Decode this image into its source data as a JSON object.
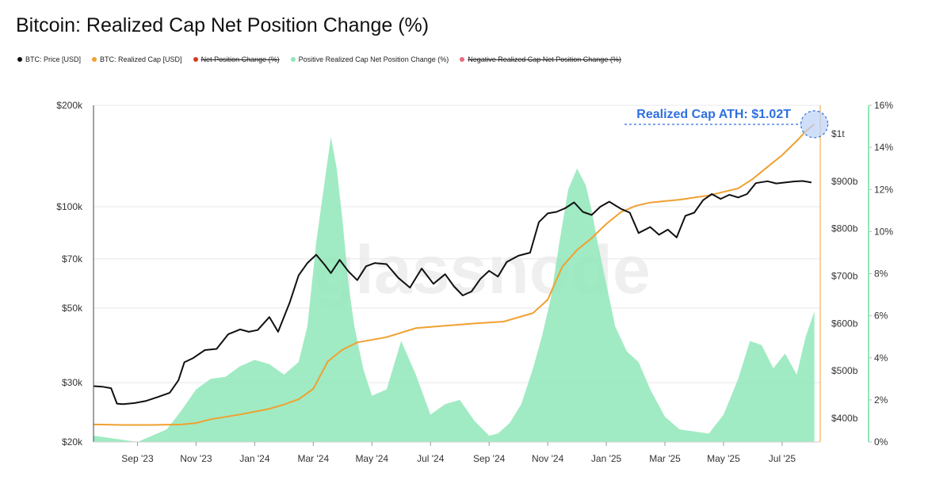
{
  "page_title": "Bitcoin: Realized Cap Net Position Change (%)",
  "legend": [
    {
      "label": "BTC: Price [USD]",
      "color": "#111111",
      "struck": false
    },
    {
      "label": "BTC: Realized Cap [USD]",
      "color": "#f0a030",
      "struck": false
    },
    {
      "label": "Net Position Change (%)",
      "color": "#d63a1e",
      "struck": true
    },
    {
      "label": "Positive Realized Cap Net Position Change (%)",
      "color": "#8fe8b8",
      "struck": false
    },
    {
      "label": "Negative Realized Cap Net Position Change (%)",
      "color": "#e86a7a",
      "struck": true
    }
  ],
  "watermark": "glassnode",
  "annotation": "Realized Cap ATH: $1.02T",
  "colors": {
    "price": "#111111",
    "realized_cap": "#f0a030",
    "positive": "#8fe8b8",
    "annotation": "#2f6fe0"
  },
  "chart_data": {
    "type": "line",
    "title": "Bitcoin: Realized Cap Net Position Change (%)",
    "x_range": [
      "2023-08",
      "2025-07"
    ],
    "x_ticks": [
      "Sep '23",
      "Nov '23",
      "Jan '24",
      "Mar '24",
      "May '24",
      "Jul '24",
      "Sep '24",
      "Nov '24",
      "Jan '25",
      "Mar '25",
      "May '25",
      "Jul '25"
    ],
    "x_tick_pos": [
      1.5,
      3.5,
      5.5,
      7.5,
      9.5,
      11.5,
      13.5,
      15.5,
      17.5,
      19.5,
      21.5,
      23.5
    ],
    "x_max": 24.8,
    "y_left": {
      "label": "BTC: Price [USD]",
      "scale": "log",
      "range": [
        20000,
        200000
      ],
      "ticks": [
        20000,
        30000,
        50000,
        70000,
        100000,
        200000
      ],
      "tick_labels": [
        "$20k",
        "$30k",
        "$50k",
        "$70k",
        "$100k",
        "$200k"
      ]
    },
    "y_right1": {
      "label": "BTC: Realized Cap [USD]",
      "range": [
        350,
        1060
      ],
      "ticks": [
        400,
        500,
        600,
        700,
        800,
        900,
        1000
      ],
      "tick_labels": [
        "$400b",
        "$500b",
        "$600b",
        "$700b",
        "$800b",
        "$900b",
        "$1t"
      ]
    },
    "y_right2": {
      "label": "Net Position Change (%)",
      "range": [
        0,
        16
      ],
      "ticks": [
        0,
        2,
        4,
        6,
        8,
        10,
        12,
        14,
        16
      ],
      "tick_labels": [
        "0%",
        "2%",
        "4%",
        "6%",
        "8%",
        "10%",
        "12%",
        "14%",
        "16%"
      ]
    },
    "series": [
      {
        "name": "BTC: Price [USD]",
        "x": [
          0,
          0.3,
          0.6,
          0.8,
          1.0,
          1.4,
          1.8,
          2.2,
          2.6,
          2.9,
          3.1,
          3.4,
          3.8,
          4.2,
          4.6,
          5.0,
          5.3,
          5.6,
          6.0,
          6.3,
          6.7,
          7.0,
          7.3,
          7.6,
          7.9,
          8.1,
          8.4,
          8.7,
          9.0,
          9.3,
          9.6,
          10.0,
          10.4,
          10.8,
          11.2,
          11.6,
          12.0,
          12.3,
          12.6,
          12.9,
          13.2,
          13.5,
          13.8,
          14.1,
          14.5,
          14.9,
          15.2,
          15.5,
          15.8,
          16.1,
          16.4,
          16.7,
          17.0,
          17.3,
          17.6,
          18.0,
          18.3,
          18.6,
          19.0,
          19.3,
          19.6,
          19.9,
          20.2,
          20.5,
          20.8,
          21.1,
          21.4,
          21.7,
          22.0,
          22.3,
          22.6,
          23.0,
          23.3,
          23.6,
          23.9,
          24.2,
          24.5
        ],
        "values": [
          29300,
          29200,
          28900,
          26000,
          25900,
          26100,
          26500,
          27200,
          28000,
          30500,
          34500,
          35500,
          37500,
          37800,
          41800,
          43200,
          42500,
          43000,
          47000,
          42500,
          52000,
          62500,
          68000,
          72000,
          67000,
          63500,
          69500,
          64200,
          60500,
          66500,
          68000,
          67500,
          61500,
          57500,
          65500,
          59000,
          63000,
          58000,
          54500,
          56000,
          61000,
          64500,
          62000,
          68500,
          71500,
          73000,
          90000,
          95500,
          96500,
          99000,
          103000,
          96500,
          94500,
          100000,
          103500,
          98500,
          96000,
          83500,
          87000,
          82500,
          85500,
          81000,
          94000,
          96000,
          104500,
          109000,
          105500,
          108500,
          106500,
          109000,
          117500,
          119000,
          117200,
          118000,
          118800,
          119200,
          118000
        ]
      },
      {
        "name": "BTC: Realized Cap [USD]",
        "x": [
          0,
          1.0,
          2.0,
          3.0,
          3.5,
          4.0,
          5.0,
          6.0,
          6.5,
          7.0,
          7.5,
          8.0,
          8.5,
          9.0,
          10.0,
          11.0,
          12.0,
          13.0,
          14.0,
          15.0,
          15.5,
          16.0,
          16.5,
          17.0,
          17.5,
          18.0,
          18.5,
          19.0,
          19.5,
          20.0,
          21.0,
          22.0,
          22.5,
          23.0,
          23.5,
          24.0,
          24.3,
          24.6
        ],
        "values": [
          387,
          386,
          386,
          387,
          390,
          398,
          408,
          420,
          429,
          440,
          462,
          520,
          545,
          560,
          571,
          590,
          595,
          600,
          604,
          622,
          650,
          720,
          755,
          780,
          810,
          835,
          848,
          855,
          858,
          861,
          870,
          885,
          905,
          930,
          955,
          985,
          1005,
          1020
        ]
      },
      {
        "name": "Positive Realized Cap Net Position Change (%)",
        "x": [
          0,
          1.5,
          2.5,
          3.0,
          3.5,
          4.0,
          4.5,
          5.0,
          5.5,
          6.0,
          6.5,
          7.0,
          7.3,
          7.6,
          7.9,
          8.1,
          8.3,
          8.5,
          8.7,
          8.9,
          9.2,
          9.5,
          10.0,
          10.5,
          11.0,
          11.5,
          12.0,
          12.5,
          13.0,
          13.5,
          13.8,
          14.2,
          14.6,
          15.0,
          15.3,
          15.6,
          15.9,
          16.2,
          16.5,
          16.8,
          17.0,
          17.2,
          17.5,
          17.8,
          18.2,
          18.6,
          19.0,
          19.5,
          20.0,
          20.5,
          21.0,
          21.5,
          22.0,
          22.4,
          22.8,
          23.2,
          23.6,
          24.0,
          24.3,
          24.6
        ],
        "values": [
          0.3,
          0.0,
          0.6,
          1.5,
          2.5,
          3.0,
          3.1,
          3.6,
          3.9,
          3.7,
          3.2,
          3.8,
          5.5,
          9.5,
          12.5,
          14.5,
          13.0,
          10.5,
          7.5,
          5.5,
          3.5,
          2.2,
          2.5,
          4.8,
          3.2,
          1.3,
          1.8,
          2.0,
          1.0,
          0.3,
          0.4,
          0.9,
          1.8,
          3.5,
          5.0,
          6.8,
          9.5,
          12.0,
          13.0,
          12.2,
          11.0,
          9.5,
          7.5,
          5.5,
          4.3,
          3.8,
          2.5,
          1.2,
          0.6,
          0.5,
          0.4,
          1.3,
          3.0,
          4.8,
          4.6,
          3.5,
          4.2,
          3.2,
          5.0,
          6.2
        ]
      }
    ]
  }
}
